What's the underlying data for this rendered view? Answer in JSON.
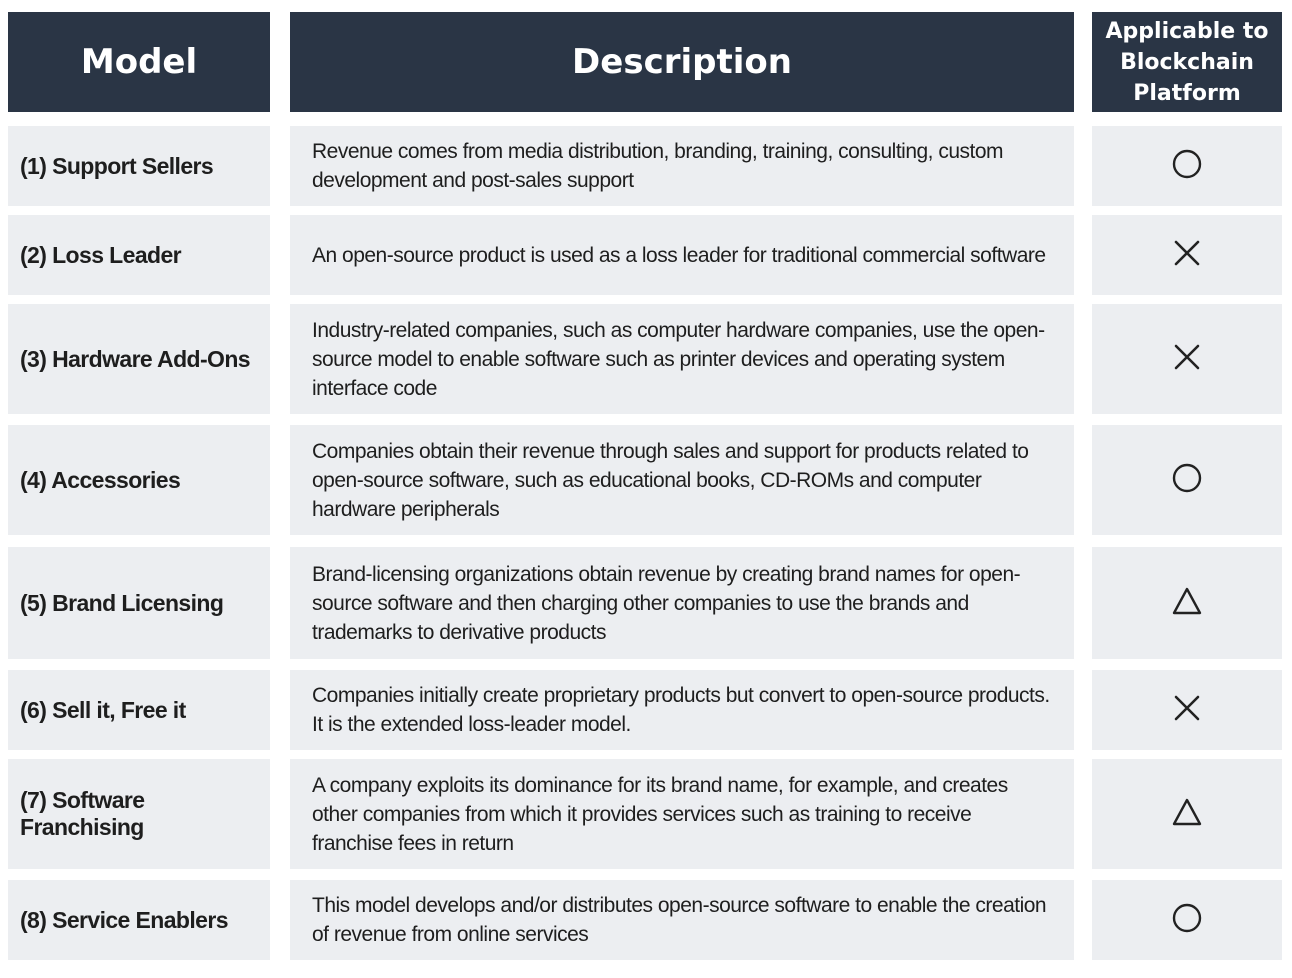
{
  "header": {
    "model": "Model",
    "description": "Description",
    "applicable": "Applicable to\nBlockchain\nPlatform"
  },
  "rows": [
    {
      "model": "(1) Support Sellers",
      "description": "Revenue comes from media distribution, branding, training, consulting, custom development and post-sales support",
      "symbol": "circle"
    },
    {
      "model": "(2) Loss Leader",
      "description": "An open-source product is used as a loss leader for traditional commercial software",
      "symbol": "cross"
    },
    {
      "model": "(3) Hardware Add-Ons",
      "description": "Industry-related companies, such as computer hardware companies, use the open-source model to enable software such as printer devices and operating system interface code",
      "symbol": "cross"
    },
    {
      "model": "(4) Accessories",
      "description": "Companies obtain their revenue through sales and support for products related to open-source software, such as educational books, CD-ROMs and computer hardware peripherals",
      "symbol": "circle"
    },
    {
      "model": "(5) Brand Licensing",
      "description": "Brand-licensing organizations obtain revenue by creating brand names for open-source software and then charging other companies to use the brands and trademarks to derivative products",
      "symbol": "triangle"
    },
    {
      "model": "(6) Sell it, Free it",
      "description": "Companies initially create proprietary products but convert to open-source products. It is the extended loss-leader model.",
      "symbol": "cross"
    },
    {
      "model": "(7) Software\n     Franchising",
      "description": "A company exploits its dominance for its brand name, for example, and creates other companies from which it provides services such as training to receive franchise fees in return",
      "symbol": "triangle"
    },
    {
      "model": "(8) Service Enablers",
      "description": "This model develops and/or distributes open-source software to enable the creation of revenue from online services",
      "symbol": "circle"
    }
  ]
}
